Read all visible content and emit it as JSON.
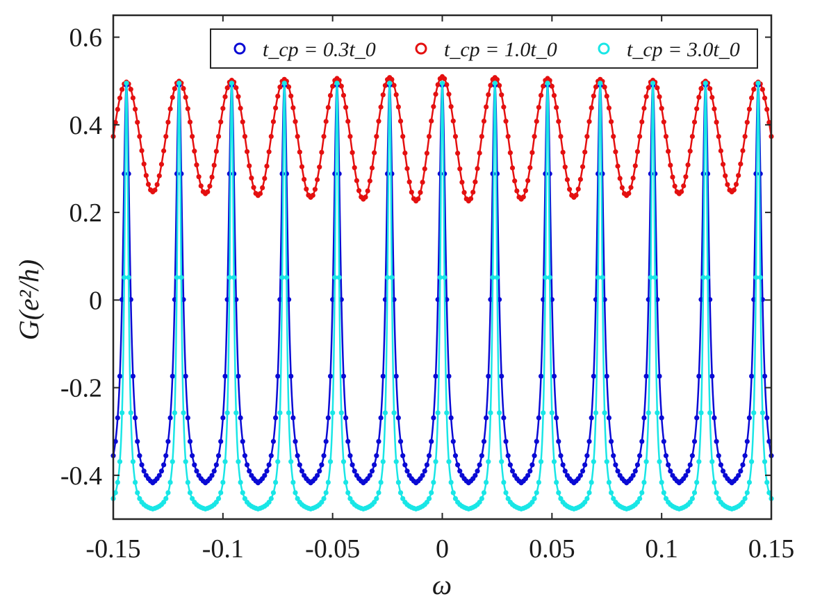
{
  "chart_data": {
    "type": "line",
    "title": "",
    "xlabel": "ω",
    "ylabel": "G(e²/h)",
    "xlim": [
      -0.15,
      0.15
    ],
    "ylim": [
      -0.5,
      0.65
    ],
    "grid": false,
    "legend_position": "top-right",
    "x_ticks": [
      -0.15,
      -0.1,
      -0.05,
      0,
      0.05,
      0.1,
      0.15
    ],
    "x_tick_labels": [
      "-0.15",
      "-0.1",
      "-0.05",
      "0",
      "0.05",
      "0.1",
      "0.15"
    ],
    "y_ticks": [
      -0.4,
      -0.2,
      0,
      0.2,
      0.4,
      0.6
    ],
    "y_tick_labels": [
      "-0.4",
      "-0.2",
      "0",
      "0.2",
      "0.4",
      "0.6"
    ],
    "peak_positions": [
      -0.144,
      -0.12,
      -0.096,
      -0.072,
      -0.048,
      -0.024,
      0,
      0.024,
      0.048,
      0.072,
      0.096,
      0.12,
      0.144
    ],
    "series": [
      {
        "name": "t_cp = 0.3t_0",
        "legend_label": "t_cp = 0.3t_0",
        "color": "#0a0ad4",
        "baseline": -0.44,
        "peak": 0.49,
        "peak_halfwidth": 0.0019,
        "marker": "circle"
      },
      {
        "name": "t_cp = 1.0t_0",
        "legend_label": "t_cp = 1.0t_0",
        "color": "#e41010",
        "minimum_range": [
          0.237,
          0.263
        ],
        "peak": 0.497,
        "marker": "circle"
      },
      {
        "name": "t_cp = 3.0t_0",
        "legend_label": "t_cp = 3.0t_0",
        "color": "#19e6e6",
        "baseline": -0.485,
        "peak": 0.495,
        "peak_halfwidth": 0.0011,
        "marker": "circle"
      }
    ]
  }
}
